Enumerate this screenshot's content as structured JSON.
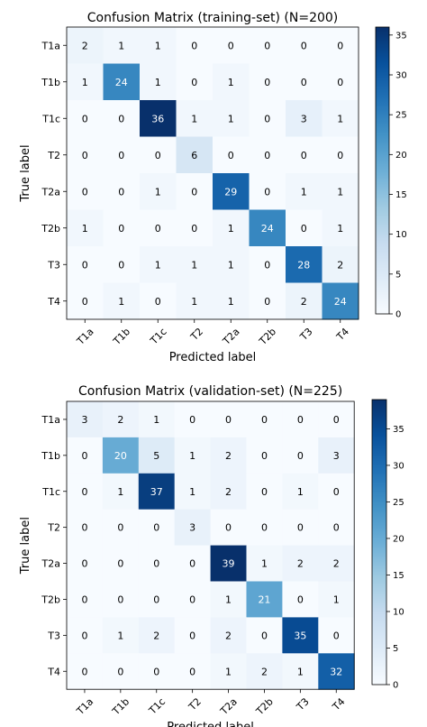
{
  "chart_data": [
    {
      "type": "heatmap",
      "title": "Confusion Matrix (training-set) (N=200)",
      "xlabel": "Predicted label",
      "ylabel": "True label",
      "x_categories": [
        "T1a",
        "T1b",
        "T1c",
        "T2",
        "T2a",
        "T2b",
        "T3",
        "T4"
      ],
      "y_categories": [
        "T1a",
        "T1b",
        "T1c",
        "T2",
        "T2a",
        "T2b",
        "T3",
        "T4"
      ],
      "values": [
        [
          2,
          1,
          1,
          0,
          0,
          0,
          0,
          0
        ],
        [
          1,
          24,
          1,
          0,
          1,
          0,
          0,
          0
        ],
        [
          0,
          0,
          36,
          1,
          1,
          0,
          3,
          1
        ],
        [
          0,
          0,
          0,
          6,
          0,
          0,
          0,
          0
        ],
        [
          0,
          0,
          1,
          0,
          29,
          0,
          1,
          1
        ],
        [
          1,
          0,
          0,
          0,
          1,
          24,
          0,
          1
        ],
        [
          0,
          0,
          1,
          1,
          1,
          0,
          28,
          2
        ],
        [
          0,
          1,
          0,
          1,
          1,
          0,
          2,
          24
        ]
      ],
      "colorbar": {
        "min": 0,
        "max": 36,
        "ticks": [
          0,
          5,
          10,
          15,
          20,
          25,
          30,
          35
        ]
      }
    },
    {
      "type": "heatmap",
      "title": "Confusion Matrix (validation-set) (N=225)",
      "xlabel": "Predicted label",
      "ylabel": "True label",
      "x_categories": [
        "T1a",
        "T1b",
        "T1c",
        "T2",
        "T2a",
        "T2b",
        "T3",
        "T4"
      ],
      "y_categories": [
        "T1a",
        "T1b",
        "T1c",
        "T2",
        "T2a",
        "T2b",
        "T3",
        "T4"
      ],
      "values": [
        [
          3,
          2,
          1,
          0,
          0,
          0,
          0,
          0
        ],
        [
          0,
          20,
          5,
          1,
          2,
          0,
          0,
          3
        ],
        [
          0,
          1,
          37,
          1,
          2,
          0,
          1,
          0
        ],
        [
          0,
          0,
          0,
          3,
          0,
          0,
          0,
          0
        ],
        [
          0,
          0,
          0,
          0,
          39,
          1,
          2,
          2
        ],
        [
          0,
          0,
          0,
          0,
          1,
          21,
          0,
          1
        ],
        [
          0,
          1,
          2,
          0,
          2,
          0,
          35,
          0
        ],
        [
          0,
          0,
          0,
          0,
          1,
          2,
          1,
          32
        ]
      ],
      "colorbar": {
        "min": 0,
        "max": 39,
        "ticks": [
          0,
          5,
          10,
          15,
          20,
          25,
          30,
          35
        ]
      }
    }
  ]
}
